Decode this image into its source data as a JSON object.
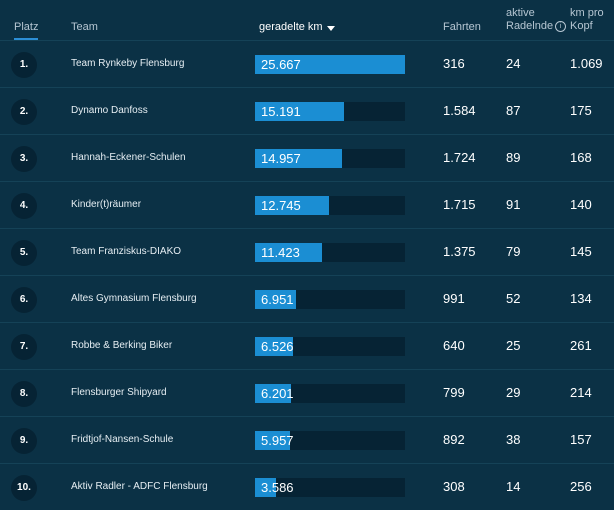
{
  "header": {
    "platz": "Platz",
    "team": "Team",
    "km": "geradelte km",
    "fahrten": "Fahrten",
    "aktive_line1": "aktive",
    "aktive_line2": "Radelnde",
    "kmpro_line1": "km pro",
    "kmpro_line2": "Kopf"
  },
  "max_km": 25667,
  "rows": [
    {
      "rank": "1.",
      "team": "Team Rynkeby Flensburg",
      "km": "25.667",
      "km_value": 25667,
      "fahrten": "316",
      "aktive": "24",
      "kmpro": "1.069"
    },
    {
      "rank": "2.",
      "team": "Dynamo Danfoss",
      "km": "15.191",
      "km_value": 15191,
      "fahrten": "1.584",
      "aktive": "87",
      "kmpro": "175"
    },
    {
      "rank": "3.",
      "team": "Hannah-Eckener-Schulen",
      "km": "14.957",
      "km_value": 14957,
      "fahrten": "1.724",
      "aktive": "89",
      "kmpro": "168"
    },
    {
      "rank": "4.",
      "team": "Kinder(t)räumer",
      "km": "12.745",
      "km_value": 12745,
      "fahrten": "1.715",
      "aktive": "91",
      "kmpro": "140"
    },
    {
      "rank": "5.",
      "team": "Team Franziskus-DIAKO",
      "km": "11.423",
      "km_value": 11423,
      "fahrten": "1.375",
      "aktive": "79",
      "kmpro": "145"
    },
    {
      "rank": "6.",
      "team": "Altes Gymnasium Flensburg",
      "km": "6.951",
      "km_value": 6951,
      "fahrten": "991",
      "aktive": "52",
      "kmpro": "134"
    },
    {
      "rank": "7.",
      "team": "Robbe & Berking Biker",
      "km": "6.526",
      "km_value": 6526,
      "fahrten": "640",
      "aktive": "25",
      "kmpro": "261"
    },
    {
      "rank": "8.",
      "team": "Flensburger Shipyard",
      "km": "6.201",
      "km_value": 6201,
      "fahrten": "799",
      "aktive": "29",
      "kmpro": "214"
    },
    {
      "rank": "9.",
      "team": "Fridtjof-Nansen-Schule",
      "km": "5.957",
      "km_value": 5957,
      "fahrten": "892",
      "aktive": "38",
      "kmpro": "157"
    },
    {
      "rank": "10.",
      "team": "Aktiv Radler - ADFC Flensburg",
      "km": "3.586",
      "km_value": 3586,
      "fahrten": "308",
      "aktive": "14",
      "kmpro": "256"
    }
  ],
  "icons": {
    "sort": "sort-desc-icon",
    "info": "info-icon"
  },
  "colors": {
    "background": "#0b3145",
    "bar": "#1b8ed3",
    "track": "#062334",
    "accent": "#2c8fd6"
  }
}
